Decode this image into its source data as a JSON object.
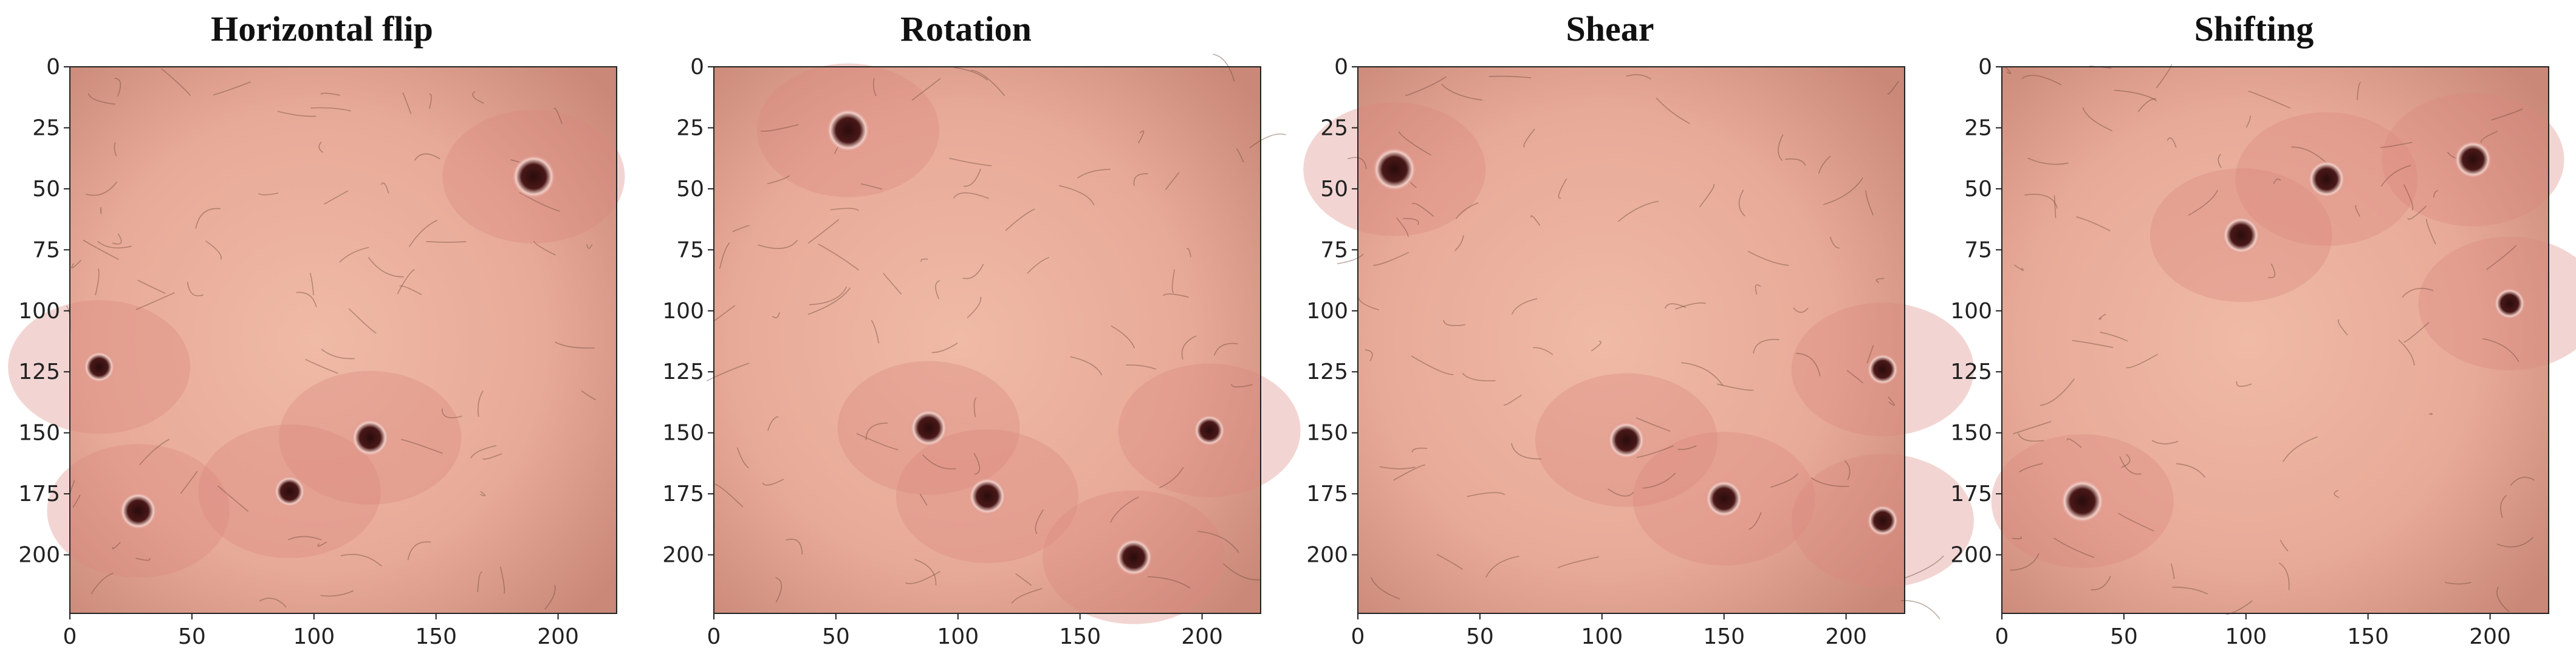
{
  "figure": {
    "panels": [
      {
        "title": "Horizontal flip",
        "lesions": [
          {
            "x": 190,
            "y": 45,
            "r": 7
          },
          {
            "x": 12,
            "y": 123,
            "r": 5
          },
          {
            "x": 123,
            "y": 152,
            "r": 6
          },
          {
            "x": 90,
            "y": 174,
            "r": 5
          },
          {
            "x": 28,
            "y": 182,
            "r": 6
          }
        ]
      },
      {
        "title": "Rotation",
        "lesions": [
          {
            "x": 55,
            "y": 26,
            "r": 7
          },
          {
            "x": 88,
            "y": 148,
            "r": 6
          },
          {
            "x": 112,
            "y": 176,
            "r": 6
          },
          {
            "x": 172,
            "y": 201,
            "r": 6
          },
          {
            "x": 203,
            "y": 149,
            "r": 5
          }
        ]
      },
      {
        "title": "Shear",
        "lesions": [
          {
            "x": 15,
            "y": 42,
            "r": 7
          },
          {
            "x": 110,
            "y": 153,
            "r": 6
          },
          {
            "x": 150,
            "y": 177,
            "r": 6
          },
          {
            "x": 215,
            "y": 124,
            "r": 5
          },
          {
            "x": 215,
            "y": 186,
            "r": 5
          }
        ]
      },
      {
        "title": "Shifting",
        "lesions": [
          {
            "x": 193,
            "y": 38,
            "r": 6
          },
          {
            "x": 133,
            "y": 46,
            "r": 6
          },
          {
            "x": 98,
            "y": 69,
            "r": 6
          },
          {
            "x": 208,
            "y": 97,
            "r": 5
          },
          {
            "x": 33,
            "y": 178,
            "r": 7
          }
        ]
      }
    ],
    "y_ticks": [
      "0",
      "25",
      "50",
      "75",
      "100",
      "125",
      "150",
      "175",
      "200"
    ],
    "x_ticks": [
      "0",
      "50",
      "100",
      "150",
      "200"
    ],
    "x_tick_values": [
      0,
      50,
      100,
      150,
      200
    ],
    "y_tick_values": [
      0,
      25,
      50,
      75,
      100,
      125,
      150,
      175,
      200
    ],
    "image_extent": [
      0,
      224
    ],
    "colors": {
      "skin_base": "#e8aa98",
      "skin_red": "#d9877f",
      "lesion": "#4a1818",
      "lesion_halo": "#f3cfc6",
      "hair": "#6b4a3a"
    }
  }
}
